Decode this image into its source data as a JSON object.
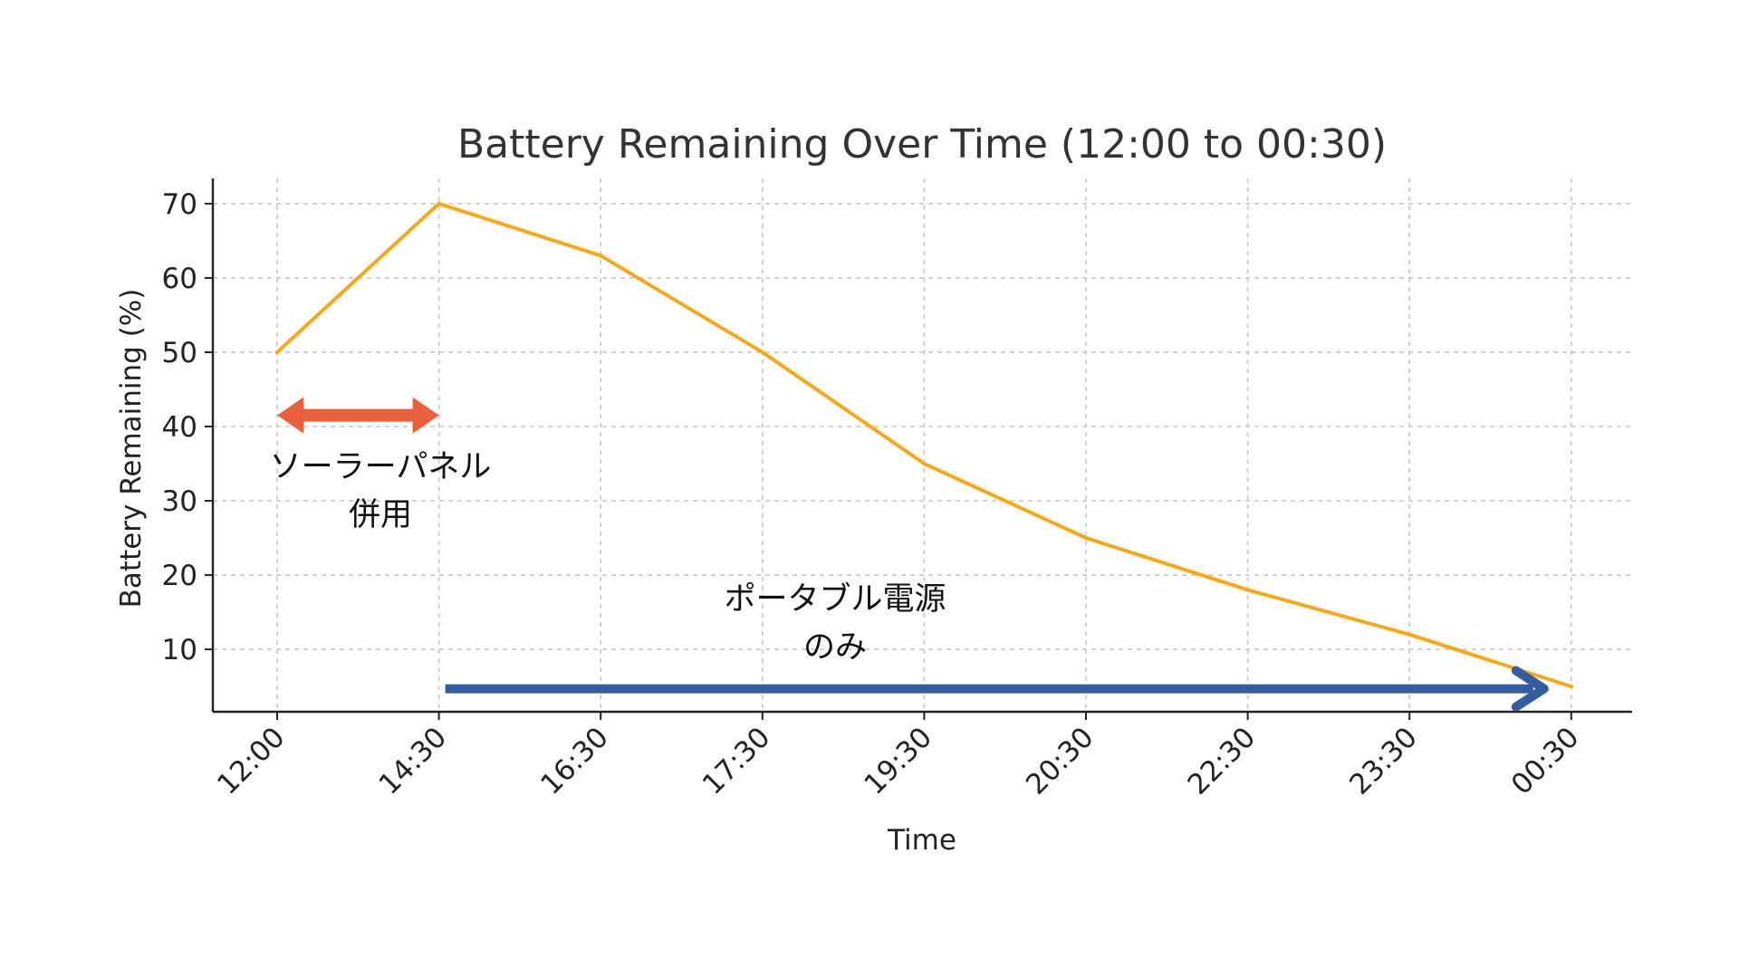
{
  "chart_data": {
    "type": "line",
    "title": "Battery Remaining Over Time (12:00 to 00:30)",
    "xlabel": "Time",
    "ylabel": "Battery Remaining (%)",
    "categories": [
      "12:00",
      "14:30",
      "16:30",
      "17:30",
      "19:30",
      "20:30",
      "22:30",
      "23:30",
      "00:30"
    ],
    "series": [
      {
        "values": [
          50,
          70,
          63,
          50,
          35,
          25,
          18,
          12,
          5
        ],
        "color": "#f5a81b"
      }
    ],
    "y_ticks": [
      10,
      20,
      30,
      40,
      50,
      60,
      70
    ],
    "ylim": [
      1.6,
      73.4
    ],
    "grid": true,
    "annotations": [
      {
        "lines": [
          "ソーラーパネル",
          "併用"
        ],
        "arrow": {
          "from": "12:00",
          "to": "14:30",
          "y": 41.5,
          "style": "double-headed",
          "color": "#e8613c"
        }
      },
      {
        "lines": [
          "ポータブル電源",
          "のみ"
        ],
        "arrow": {
          "from": "14:30",
          "to": "00:30",
          "y": 4.7,
          "style": "single-headed",
          "color": "#345d9f"
        }
      }
    ]
  }
}
